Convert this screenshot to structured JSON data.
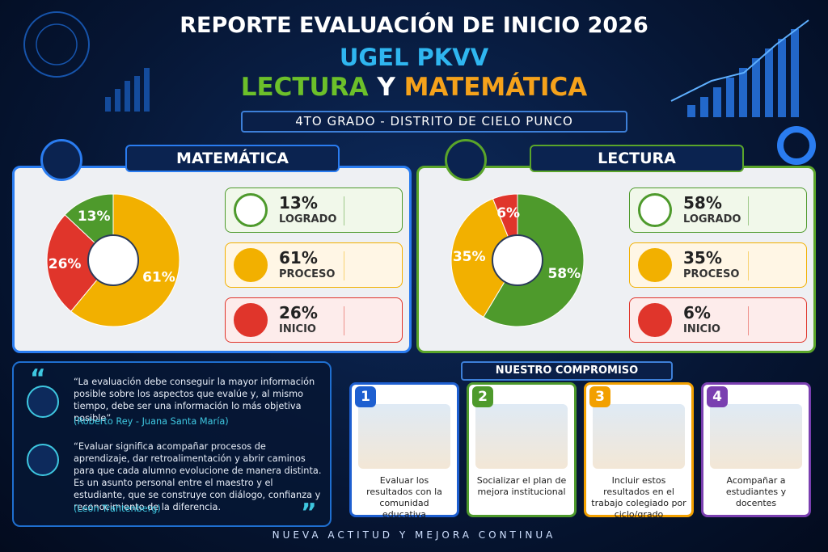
{
  "header": {
    "title": "REPORTE EVALUACIÓN DE INICIO 2026",
    "org": "UGEL PKVV",
    "subject_a": "LECTURA",
    "subject_joiner": "Y",
    "subject_b": "MATEMÁTICA",
    "subtitle": "4TO GRADO - DISTRITO DE CIELO PUNCO"
  },
  "chart_data": [
    {
      "type": "pie",
      "title": "MATEMÁTICA",
      "categories": [
        "LOGRADO",
        "PROCESO",
        "INICIO"
      ],
      "values": [
        13,
        61,
        26
      ],
      "value_labels": [
        "13%",
        "61%",
        "26%"
      ],
      "colors": [
        "#4e9a2c",
        "#f2b000",
        "#e0352b"
      ]
    },
    {
      "type": "pie",
      "title": "LECTURA",
      "categories": [
        "LOGRADO",
        "PROCESO",
        "INICIO"
      ],
      "values": [
        58,
        35,
        6
      ],
      "value_labels": [
        "58%",
        "35%",
        "6%"
      ],
      "colors": [
        "#4e9a2c",
        "#f2b000",
        "#e0352b"
      ]
    }
  ],
  "quotes": [
    {
      "text": "“La evaluación debe conseguir la mayor información posible sobre los aspectos que evalúe y, al mismo tiempo, debe ser una información lo más objetiva posible”",
      "author": "(Roberto Rey - Juana Santa María)"
    },
    {
      "text": "“Evaluar significa acompañar procesos de aprendizaje, dar retroalimentación y abrir caminos para que cada alumno evolucione de manera distinta. Es un asunto personal entre el maestro y el estudiante, que se construye con diálogo, confianza y reconocimiento de la diferencia.",
      "author": "(León Trahtenberg)"
    }
  ],
  "commitment": {
    "title": "NUESTRO COMPROMISO",
    "items": [
      {
        "number": 1,
        "text": "Evaluar los resultados con la comunidad educativa"
      },
      {
        "number": 2,
        "text": "Socializar el plan de mejora institucional"
      },
      {
        "number": 3,
        "text": "Incluir estos resultados en el trabajo colegiado por ciclo/grado"
      },
      {
        "number": 4,
        "text": "Acompañar a estudiantes y docentes"
      }
    ]
  },
  "footer": "NUEVA ACTITUD Y MEJORA CONTINUA"
}
